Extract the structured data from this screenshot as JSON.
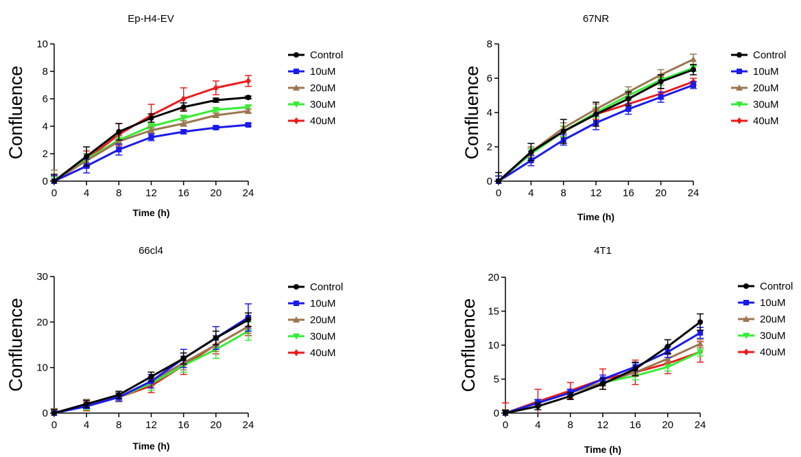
{
  "legend_colors": {
    "Control": "#000000",
    "10uM": "#1a1aee",
    "20uM": "#9c7650",
    "30uM": "#33ee33",
    "40uM": "#ee1a1a"
  },
  "chart_data": [
    {
      "type": "line",
      "title": "Ep-H4-EV",
      "xlabel": "Time (h)",
      "ylabel": "Confluence",
      "x": [
        0,
        4,
        8,
        12,
        16,
        20,
        24
      ],
      "xlim": [
        0,
        24
      ],
      "ylim": [
        0,
        10
      ],
      "yticks": [
        0,
        2,
        4,
        6,
        8,
        10
      ],
      "grid": false,
      "legend_position": "right",
      "series": [
        {
          "name": "Control",
          "marker": "circle",
          "values": [
            0,
            1.8,
            3.6,
            4.6,
            5.4,
            5.9,
            6.1
          ],
          "errors": [
            0.5,
            0.7,
            0.6,
            0.3,
            0.3,
            0.15,
            0.1
          ]
        },
        {
          "name": "10uM",
          "marker": "square",
          "values": [
            0,
            1.1,
            2.3,
            3.2,
            3.6,
            3.9,
            4.1
          ],
          "errors": [
            0.4,
            0.5,
            0.4,
            0.25,
            0.15,
            0.12,
            0.1
          ]
        },
        {
          "name": "20uM",
          "marker": "triangle-up",
          "values": [
            0,
            1.5,
            2.9,
            3.7,
            4.2,
            4.8,
            5.1
          ],
          "errors": [
            0.8,
            0.5,
            0.4,
            0.2,
            0.2,
            0.15,
            0.15
          ]
        },
        {
          "name": "30uM",
          "marker": "triangle-down",
          "values": [
            0,
            1.6,
            3.0,
            4.0,
            4.6,
            5.2,
            5.4
          ],
          "errors": [
            0.3,
            0.4,
            0.3,
            0.2,
            0.2,
            0.15,
            0.15
          ]
        },
        {
          "name": "40uM",
          "marker": "diamond",
          "values": [
            0,
            1.6,
            3.4,
            4.8,
            6.0,
            6.8,
            7.3
          ],
          "errors": [
            0.4,
            0.6,
            0.8,
            0.8,
            0.8,
            0.5,
            0.4
          ]
        }
      ]
    },
    {
      "type": "line",
      "title": "67NR",
      "xlabel": "Time (h)",
      "ylabel": "Confluence",
      "x": [
        0,
        4,
        8,
        12,
        16,
        20,
        24
      ],
      "xlim": [
        0,
        24
      ],
      "ylim": [
        0,
        8
      ],
      "yticks": [
        0,
        2,
        4,
        6,
        8
      ],
      "grid": false,
      "legend_position": "right",
      "series": [
        {
          "name": "Control",
          "marker": "circle",
          "values": [
            0,
            1.7,
            2.9,
            3.9,
            4.8,
            5.8,
            6.5
          ],
          "errors": [
            0.5,
            0.5,
            0.7,
            0.7,
            0.4,
            0.4,
            0.3
          ]
        },
        {
          "name": "10uM",
          "marker": "square",
          "values": [
            0,
            1.2,
            2.4,
            3.4,
            4.2,
            4.9,
            5.6
          ],
          "errors": [
            0.3,
            0.3,
            0.3,
            0.4,
            0.3,
            0.3,
            0.2
          ]
        },
        {
          "name": "20uM",
          "marker": "triangle-up",
          "values": [
            0,
            1.7,
            3.1,
            4.2,
            5.2,
            6.2,
            7.1
          ],
          "errors": [
            0.3,
            0.3,
            0.3,
            0.3,
            0.3,
            0.3,
            0.3
          ]
        },
        {
          "name": "30uM",
          "marker": "triangle-down",
          "values": [
            0,
            1.6,
            2.9,
            4.0,
            5.0,
            5.9,
            6.6
          ],
          "errors": [
            0.3,
            0.3,
            0.3,
            0.3,
            0.3,
            0.3,
            0.2
          ]
        },
        {
          "name": "40uM",
          "marker": "diamond",
          "values": [
            0,
            1.6,
            2.9,
            3.9,
            4.5,
            5.1,
            5.8
          ],
          "errors": [
            0.3,
            0.3,
            0.3,
            0.3,
            0.3,
            0.3,
            0.2
          ]
        }
      ]
    },
    {
      "type": "line",
      "title": "66cl4",
      "xlabel": "Time (h)",
      "ylabel": "Confluence",
      "x": [
        0,
        4,
        8,
        12,
        16,
        20,
        24
      ],
      "xlim": [
        0,
        24
      ],
      "ylim": [
        0,
        30
      ],
      "yticks": [
        0,
        10,
        20,
        30
      ],
      "grid": false,
      "legend_position": "right",
      "series": [
        {
          "name": "Control",
          "marker": "circle",
          "values": [
            0,
            2.0,
            4.0,
            8.0,
            12.0,
            16.5,
            20.5
          ],
          "errors": [
            0.8,
            0.8,
            0.8,
            1.0,
            1.2,
            1.5,
            1.5
          ]
        },
        {
          "name": "10uM",
          "marker": "square",
          "values": [
            0,
            1.5,
            3.5,
            7.0,
            12.0,
            16.5,
            21.0
          ],
          "errors": [
            0.5,
            0.5,
            0.8,
            1.5,
            2.0,
            2.5,
            3.0
          ]
        },
        {
          "name": "20uM",
          "marker": "triangle-up",
          "values": [
            0,
            2.0,
            3.5,
            7.0,
            11.0,
            15.0,
            19.0
          ],
          "errors": [
            1.0,
            1.0,
            1.0,
            1.0,
            1.5,
            1.5,
            1.5
          ]
        },
        {
          "name": "30uM",
          "marker": "triangle-down",
          "values": [
            0,
            1.5,
            3.5,
            6.5,
            10.5,
            14.0,
            18.0
          ],
          "errors": [
            0.8,
            0.8,
            1.0,
            1.5,
            1.5,
            2.0,
            2.0
          ]
        },
        {
          "name": "40uM",
          "marker": "diamond",
          "values": [
            0,
            1.5,
            3.5,
            6.0,
            10.5,
            15.0,
            19.0
          ],
          "errors": [
            0.8,
            1.0,
            1.0,
            1.5,
            2.0,
            2.0,
            2.0
          ]
        }
      ]
    },
    {
      "type": "line",
      "title": "4T1",
      "xlabel": "Time (h)",
      "ylabel": "Confluence",
      "x": [
        0,
        4,
        8,
        12,
        16,
        20,
        24
      ],
      "xlim": [
        0,
        24
      ],
      "ylim": [
        0,
        20
      ],
      "yticks": [
        0,
        5,
        10,
        15,
        20
      ],
      "grid": false,
      "legend_position": "right",
      "series": [
        {
          "name": "Control",
          "marker": "circle",
          "values": [
            0,
            1.0,
            2.5,
            4.3,
            6.5,
            9.8,
            13.4
          ],
          "errors": [
            0.4,
            0.5,
            0.5,
            0.8,
            1.0,
            1.0,
            1.2
          ]
        },
        {
          "name": "10uM",
          "marker": "square",
          "values": [
            0,
            1.5,
            3.0,
            5.0,
            6.8,
            9.0,
            11.8
          ],
          "errors": [
            0.4,
            0.5,
            0.5,
            0.6,
            0.6,
            0.8,
            0.8
          ]
        },
        {
          "name": "20uM",
          "marker": "triangle-up",
          "values": [
            0,
            1.5,
            3.0,
            4.5,
            6.0,
            8.0,
            10.2
          ],
          "errors": [
            0.5,
            0.5,
            0.5,
            0.5,
            0.6,
            0.6,
            0.6
          ]
        },
        {
          "name": "30uM",
          "marker": "triangle-down",
          "values": [
            0,
            1.5,
            3.0,
            4.5,
            5.5,
            6.8,
            9.0
          ],
          "errors": [
            0.5,
            0.5,
            0.5,
            0.5,
            0.6,
            0.6,
            0.6
          ]
        },
        {
          "name": "40uM",
          "marker": "diamond",
          "values": [
            0,
            1.7,
            3.3,
            5.0,
            6.0,
            7.3,
            9.0
          ],
          "errors": [
            1.5,
            1.8,
            1.2,
            1.5,
            1.8,
            1.5,
            1.5
          ]
        }
      ]
    }
  ]
}
